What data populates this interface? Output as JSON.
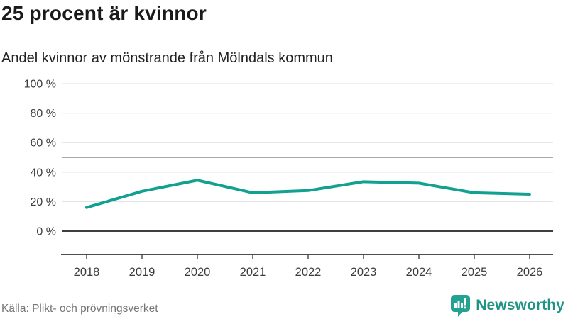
{
  "header": {
    "title": "25 procent är kvinnor",
    "subtitle": "Andel kvinnor av mönstrande från Mölndals kommun"
  },
  "chart_data": {
    "type": "line",
    "title": "25 procent är kvinnor",
    "subtitle": "Andel kvinnor av mönstrande från Mölndals kommun",
    "x": [
      "2018",
      "2019",
      "2020",
      "2021",
      "2022",
      "2023",
      "2024",
      "2025",
      "2026"
    ],
    "series": [
      {
        "name": "Andel kvinnor av mönstrande",
        "values": [
          16,
          27,
          34.5,
          26,
          27.5,
          33.5,
          32.5,
          26,
          25
        ],
        "color": "#12a191"
      }
    ],
    "ylim": [
      0,
      100
    ],
    "y_ticks": [
      0,
      20,
      40,
      60,
      80,
      100
    ],
    "y_tick_suffix": " %",
    "reference_line": 50,
    "grid": true,
    "legend": "none"
  },
  "footer": {
    "source": "Källa: Plikt- och prövningsverket",
    "brand": "Newsworthy"
  },
  "colors": {
    "line": "#12a191",
    "grid": "#e4e4e4",
    "reference": "#8c8c8c",
    "zero_line": "#3f3f3f",
    "axis": "#4d4d4d",
    "tick_label": "#3c3c3c",
    "source_text": "#757575",
    "brand_icon": "#23a292"
  }
}
